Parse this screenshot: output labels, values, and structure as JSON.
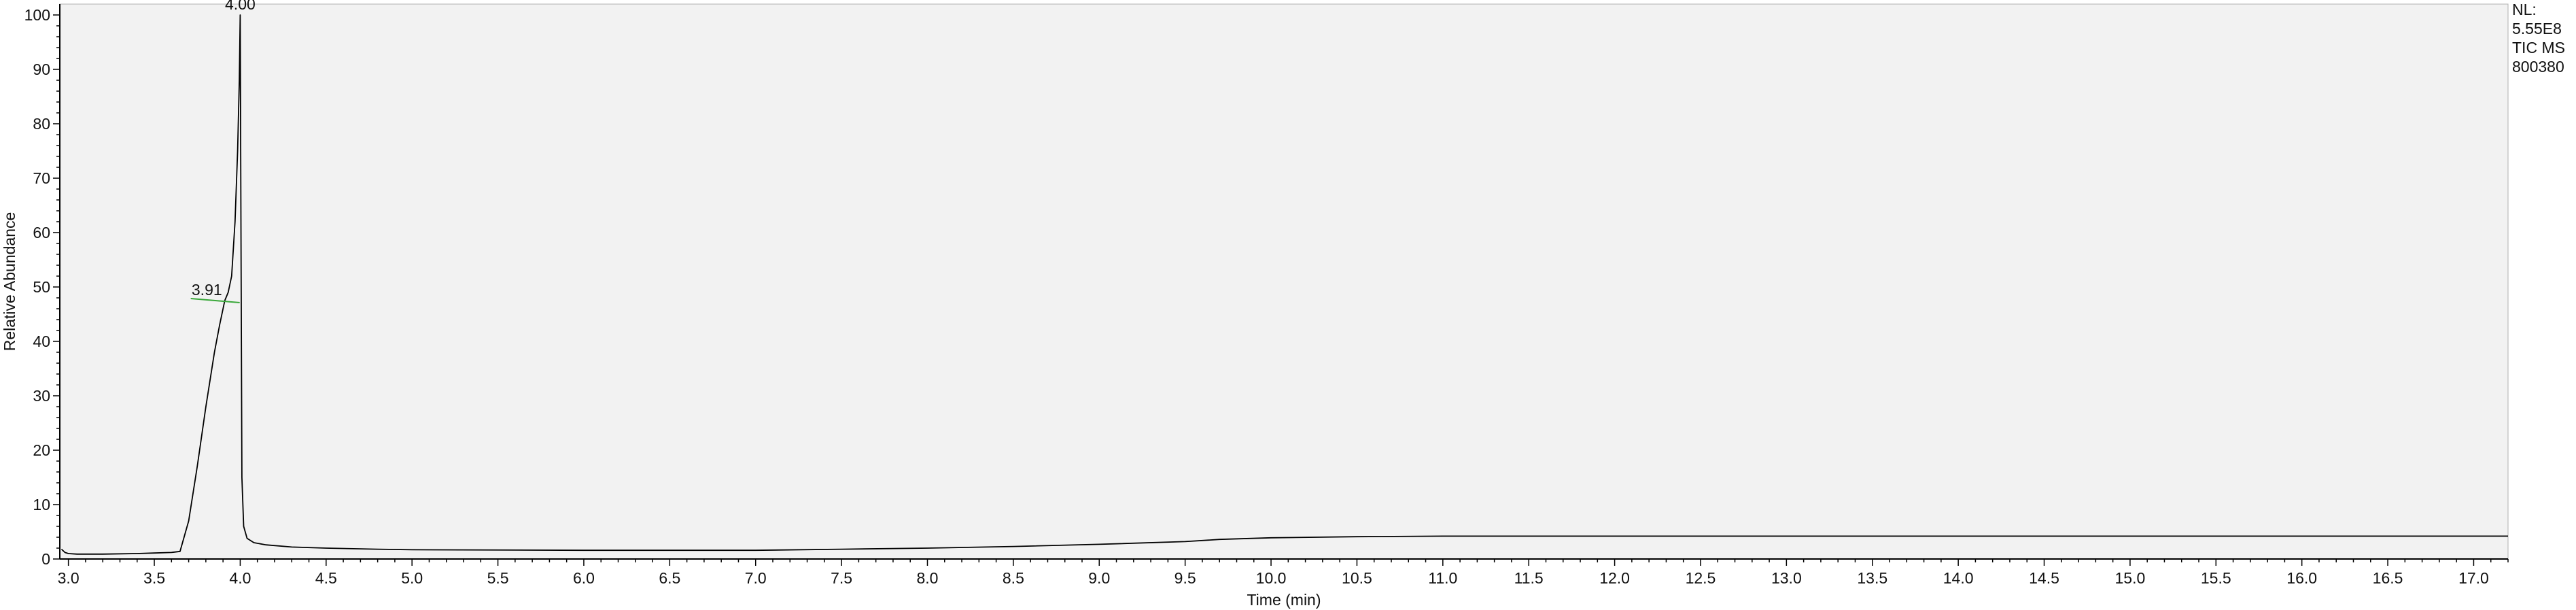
{
  "chart_data": {
    "type": "line",
    "title": "",
    "xlabel": "Time (min)",
    "ylabel": "Relative Abundance",
    "xlim": [
      2.95,
      17.2
    ],
    "ylim": [
      0,
      102
    ],
    "x_ticks": [
      3.0,
      3.5,
      4.0,
      4.5,
      5.0,
      5.5,
      6.0,
      6.5,
      7.0,
      7.5,
      8.0,
      8.5,
      9.0,
      9.5,
      10.0,
      10.5,
      11.0,
      11.5,
      12.0,
      12.5,
      13.0,
      13.5,
      14.0,
      14.5,
      15.0,
      15.5,
      16.0,
      16.5,
      17.0
    ],
    "x_tick_labels": [
      "3.0",
      "3.5",
      "4.0",
      "4.5",
      "5.0",
      "5.5",
      "6.0",
      "6.5",
      "7.0",
      "7.5",
      "8.0",
      "8.5",
      "9.0",
      "9.5",
      "10.0",
      "10.5",
      "11.0",
      "11.5",
      "12.0",
      "12.5",
      "13.0",
      "13.5",
      "14.0",
      "14.5",
      "15.0",
      "15.5",
      "16.0",
      "16.5",
      "17.0"
    ],
    "y_ticks": [
      0,
      10,
      20,
      30,
      40,
      50,
      60,
      70,
      80,
      90,
      100
    ],
    "y_tick_labels": [
      "0",
      "10",
      "20",
      "30",
      "40",
      "50",
      "60",
      "70",
      "80",
      "90",
      "100"
    ],
    "grid": false,
    "background_color": "#f2f2f2",
    "line_color": "#000000",
    "series": [
      {
        "x": [
          2.96,
          2.98,
          3.0,
          3.05,
          3.2,
          3.4,
          3.5,
          3.6,
          3.65,
          3.7,
          3.75,
          3.8,
          3.85,
          3.88,
          3.91,
          3.93,
          3.95,
          3.97,
          3.985,
          3.995,
          4.0,
          4.005,
          4.01,
          4.02,
          4.04,
          4.08,
          4.15,
          4.3,
          4.5,
          4.8,
          5.0,
          6.0,
          7.0,
          7.5,
          8.0,
          8.5,
          9.0,
          9.5,
          9.7,
          10.0,
          10.5,
          11.0,
          12.0,
          13.0,
          14.0,
          15.0,
          16.0,
          17.0,
          17.2
        ],
        "y": [
          1.8,
          1.2,
          1.0,
          0.9,
          0.9,
          1.0,
          1.1,
          1.2,
          1.4,
          7.0,
          17.0,
          28.0,
          38.0,
          43.0,
          47.5,
          49.0,
          52.0,
          62.0,
          75.0,
          88.0,
          100.0,
          55.0,
          15.0,
          6.0,
          3.8,
          3.0,
          2.6,
          2.2,
          2.0,
          1.8,
          1.7,
          1.6,
          1.6,
          1.8,
          2.0,
          2.3,
          2.7,
          3.2,
          3.6,
          3.9,
          4.1,
          4.2,
          4.2,
          4.2,
          4.2,
          4.2,
          4.2,
          4.2,
          4.2
        ]
      }
    ],
    "peak_labels": [
      {
        "x": 4.0,
        "y": 100,
        "text": "4.00"
      },
      {
        "x": 3.91,
        "y": 47.5,
        "text": "3.91"
      }
    ],
    "info_box": [
      "NL:",
      "5.55E8",
      "TIC  MS",
      "800380"
    ]
  }
}
